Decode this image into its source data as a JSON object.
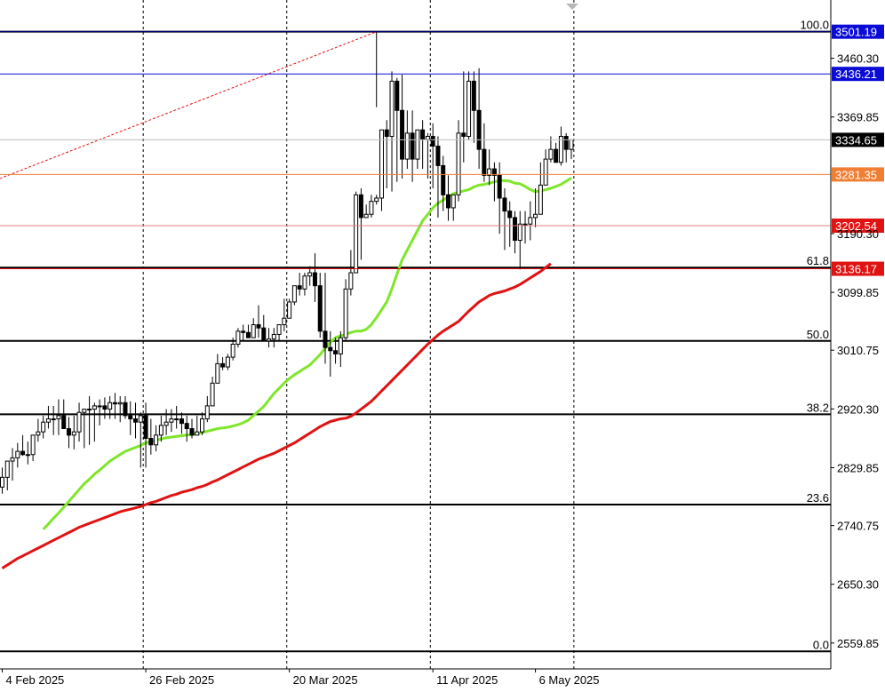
{
  "colors": {
    "background": "#ffffff",
    "bull_candle_fill": "#ffffff",
    "bear_candle_fill": "#000000",
    "candle_outline": "#000000",
    "ma_fast": "#7fe62b",
    "ma_slow": "#e01212",
    "fib_level": "#000000",
    "fib_trend": "#e01212",
    "period_sep": "#000000",
    "current_price_line": "#c0c0c0"
  },
  "chart_data": {
    "type": "candlestick",
    "ylim": [
      2520,
      3550
    ],
    "xlim": [
      -0.5,
      123
    ],
    "y_ticks": [
      "3460.30",
      "3369.85",
      "3190.30",
      "3099.85",
      "3010.75",
      "2920.30",
      "2829.85",
      "2740.75",
      "2650.30",
      "2559.85"
    ],
    "x_labels": [
      {
        "index": 0,
        "label": "4 Feb 2025"
      },
      {
        "index": 28,
        "label": "26 Feb 2025"
      },
      {
        "index": 56,
        "label": "20 Mar 2025"
      },
      {
        "index": 84,
        "label": "11 Apr 2025"
      },
      {
        "index": 104,
        "label": "6 May 2025"
      }
    ],
    "period_separators": [
      27.5,
      55.5,
      83.5,
      111.5
    ],
    "price_lines": [
      {
        "price": 3501.19,
        "label": "3501.19",
        "line_color": "#00008b",
        "badge_color": "#0b0bd6",
        "text_color": "#ffffff"
      },
      {
        "price": 3436.21,
        "label": "3436.21",
        "line_color": "#0b0bd6",
        "badge_color": "#0b0bd6",
        "text_color": "#ffffff"
      },
      {
        "price": 3334.65,
        "label": "3334.65",
        "line_color": "#c0c0c0",
        "badge_color": "#000000",
        "text_color": "#ffffff"
      },
      {
        "price": 3281.35,
        "label": "3281.35",
        "line_color": "#f07f34",
        "badge_color": "#f07f34",
        "text_color": "#ffffff"
      },
      {
        "price": 3202.54,
        "label": "3202.54",
        "line_color": "#e08080",
        "badge_color": "#e01212",
        "text_color": "#ffffff"
      },
      {
        "price": 3136.17,
        "label": "3136.17",
        "line_color": "#e01212",
        "badge_color": "#e01212",
        "text_color": "#ffffff"
      }
    ],
    "fib_levels": [
      {
        "level": "100.0",
        "price": 3501.19
      },
      {
        "level": "61.8",
        "price": 3138
      },
      {
        "level": "50.0",
        "price": 3025
      },
      {
        "level": "38.2",
        "price": 2912
      },
      {
        "level": "23.6",
        "price": 2773
      },
      {
        "level": "0.0",
        "price": 2547
      }
    ],
    "fib_trend": {
      "from": [
        -0.5,
        3275
      ],
      "to": [
        73,
        3501.19
      ]
    },
    "series": [
      {
        "name": "",
        "kind": "ohlc",
        "o": [
          2800,
          2815,
          2840,
          2845,
          2855,
          2850,
          2850,
          2880,
          2885,
          2900,
          2905,
          2905,
          2910,
          2890,
          2880,
          2885,
          2915,
          2920,
          2920,
          2925,
          2925,
          2920,
          2930,
          2928,
          2930,
          2910,
          2905,
          2900,
          2910,
          2875,
          2865,
          2880,
          2895,
          2900,
          2905,
          2905,
          2898,
          2890,
          2880,
          2885,
          2905,
          2925,
          2960,
          2990,
          2985,
          3000,
          3020,
          3040,
          3038,
          3030,
          3050,
          3045,
          3025,
          3028,
          3035,
          3050,
          3060,
          3085,
          3110,
          3105,
          3125,
          3130,
          3110,
          3040,
          3015,
          3010,
          3005,
          3030,
          3105,
          3130,
          3250,
          3215,
          3220,
          3240,
          3245,
          3350,
          3340,
          3425,
          3380,
          3305,
          3345,
          3305,
          3350,
          3335,
          3340,
          3325,
          3295,
          3250,
          3230,
          3250,
          3345,
          3340,
          3425,
          3380,
          3320,
          3280,
          3290,
          3280,
          3245,
          3225,
          3215,
          3180,
          3205,
          3205,
          3215,
          3220,
          3265,
          3305,
          3320,
          3300,
          3340,
          3320
        ],
        "h": [
          2830,
          2840,
          2860,
          2868,
          2880,
          2870,
          2880,
          2905,
          2910,
          2925,
          2925,
          2935,
          2935,
          2908,
          2910,
          2930,
          2920,
          2940,
          2930,
          2935,
          2938,
          2940,
          2945,
          2940,
          2940,
          2932,
          2930,
          2915,
          2930,
          2905,
          2895,
          2910,
          2920,
          2920,
          2925,
          2915,
          2910,
          2905,
          2910,
          2915,
          2940,
          2970,
          3005,
          3000,
          3005,
          3030,
          3045,
          3050,
          3050,
          3060,
          3080,
          3065,
          3045,
          3045,
          3050,
          3090,
          3090,
          3105,
          3130,
          3130,
          3140,
          3160,
          3130,
          3130,
          3040,
          3030,
          3040,
          3120,
          3165,
          3255,
          3260,
          3235,
          3250,
          3250,
          3350,
          3365,
          3440,
          3430,
          3435,
          3380,
          3380,
          3350,
          3365,
          3345,
          3360,
          3340,
          3310,
          3280,
          3250,
          3365,
          3440,
          3440,
          3440,
          3445,
          3360,
          3320,
          3300,
          3300,
          3260,
          3240,
          3225,
          3225,
          3225,
          3240,
          3260,
          3300,
          3320,
          3340,
          3330,
          3355,
          3345,
          3335
        ],
        "l": [
          2790,
          2795,
          2810,
          2830,
          2848,
          2835,
          2840,
          2870,
          2875,
          2890,
          2880,
          2880,
          2890,
          2860,
          2858,
          2870,
          2860,
          2865,
          2870,
          2895,
          2905,
          2905,
          2905,
          2900,
          2905,
          2880,
          2875,
          2830,
          2830,
          2850,
          2855,
          2870,
          2880,
          2885,
          2890,
          2882,
          2870,
          2875,
          2880,
          2880,
          2900,
          2925,
          2960,
          2980,
          2980,
          2995,
          3015,
          3025,
          3030,
          3030,
          3030,
          3025,
          3015,
          3015,
          3025,
          3040,
          3060,
          3080,
          3095,
          3095,
          3110,
          3085,
          3030,
          2990,
          2970,
          2990,
          2985,
          3025,
          3095,
          3130,
          3150,
          3215,
          3215,
          3235,
          3225,
          3260,
          3255,
          3270,
          3275,
          3290,
          3270,
          3290,
          3290,
          3275,
          3260,
          3215,
          3225,
          3210,
          3210,
          3240,
          3300,
          3335,
          3330,
          3290,
          3270,
          3265,
          3240,
          3190,
          3165,
          3170,
          3160,
          3135,
          3175,
          3180,
          3200,
          3220,
          3265,
          3300,
          3300,
          3295,
          3300,
          3305
        ],
        "c": [
          2815,
          2840,
          2845,
          2855,
          2850,
          2850,
          2880,
          2885,
          2900,
          2905,
          2905,
          2910,
          2890,
          2880,
          2885,
          2915,
          2920,
          2920,
          2925,
          2925,
          2920,
          2930,
          2928,
          2930,
          2910,
          2905,
          2900,
          2910,
          2875,
          2865,
          2880,
          2895,
          2900,
          2905,
          2905,
          2898,
          2890,
          2880,
          2885,
          2905,
          2925,
          2960,
          2990,
          2985,
          3000,
          3020,
          3040,
          3038,
          3030,
          3050,
          3045,
          3025,
          3028,
          3035,
          3050,
          3060,
          3085,
          3110,
          3105,
          3125,
          3130,
          3110,
          3040,
          3015,
          3010,
          3005,
          3030,
          3105,
          3130,
          3250,
          3215,
          3220,
          3240,
          3245,
          3350,
          3340,
          3425,
          3380,
          3305,
          3345,
          3305,
          3350,
          3335,
          3340,
          3325,
          3295,
          3250,
          3230,
          3250,
          3345,
          3340,
          3425,
          3380,
          3320,
          3280,
          3290,
          3280,
          3245,
          3225,
          3215,
          3180,
          3205,
          3205,
          3215,
          3220,
          3265,
          3305,
          3320,
          3300,
          3340,
          3320,
          3334.65
        ]
      },
      {
        "name": "",
        "kind": "ma",
        "color": "#7fe62b",
        "values": [
          2735,
          2743,
          2752,
          2760,
          2769,
          2778,
          2787,
          2796,
          2805,
          2812,
          2820,
          2826,
          2833,
          2840,
          2845,
          2850,
          2855,
          2858,
          2861,
          2864,
          2868,
          2870,
          2872,
          2874,
          2876,
          2877,
          2878,
          2879,
          2880,
          2881,
          2882,
          2884,
          2886,
          2888,
          2890,
          2891,
          2892,
          2894,
          2896,
          2899,
          2903,
          2910,
          2917,
          2924,
          2934,
          2944,
          2952,
          2960,
          2967,
          2973,
          2978,
          2983,
          2988,
          2996,
          3004,
          3014,
          3023,
          3030,
          3033,
          3035,
          3038,
          3040,
          3040,
          3043,
          3050,
          3061,
          3073,
          3085,
          3105,
          3128,
          3150,
          3165,
          3180,
          3195,
          3210,
          3220,
          3230,
          3237,
          3242,
          3247,
          3252,
          3254,
          3256,
          3258,
          3262,
          3265,
          3266,
          3268,
          3270,
          3272,
          3272,
          3271,
          3268,
          3267,
          3263,
          3258,
          3255,
          3256,
          3258,
          3260,
          3263,
          3266,
          3271,
          3276
        ],
        "start": 8
      },
      {
        "name": "",
        "kind": "ma",
        "color": "#e01212",
        "values": [
          2675,
          2680,
          2685,
          2690,
          2694,
          2698,
          2702,
          2706,
          2710,
          2714,
          2718,
          2722,
          2726,
          2730,
          2734,
          2738,
          2741,
          2744,
          2747,
          2750,
          2753,
          2756,
          2759,
          2762,
          2764,
          2766,
          2768,
          2770,
          2773,
          2776,
          2778,
          2781,
          2784,
          2787,
          2789,
          2792,
          2794,
          2796,
          2799,
          2801,
          2804,
          2808,
          2811,
          2815,
          2819,
          2823,
          2827,
          2831,
          2835,
          2839,
          2843,
          2846,
          2849,
          2852,
          2856,
          2860,
          2864,
          2868,
          2873,
          2878,
          2883,
          2888,
          2893,
          2897,
          2901,
          2903,
          2905,
          2906,
          2909,
          2914,
          2920,
          2926,
          2932,
          2940,
          2948,
          2956,
          2964,
          2972,
          2980,
          2988,
          2996,
          3004,
          3012,
          3020,
          3027,
          3034,
          3040,
          3045,
          3050,
          3055,
          3063,
          3071,
          3078,
          3085,
          3090,
          3095,
          3098,
          3100,
          3102,
          3105,
          3108,
          3112,
          3117,
          3122,
          3127,
          3132,
          3138,
          3144
        ],
        "start": 0
      }
    ]
  }
}
